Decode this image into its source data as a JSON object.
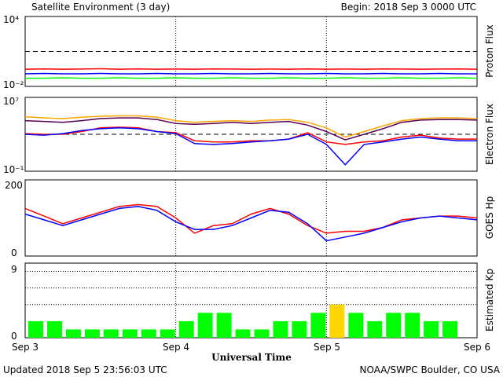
{
  "header": {
    "title": "Satellite Environment (3 day)",
    "begin": "Begin:  2018 Sep 3 0000 UTC"
  },
  "footer": {
    "updated": "Updated 2018 Sep  5 23:56:03 UTC",
    "credit": "NOAA/SWPC Boulder, CO USA"
  },
  "colors": {
    "red": "#ff0000",
    "blue": "#0000ff",
    "green": "#00ff00",
    "orange": "#ffa500",
    "purple": "#550055",
    "kp_green": "#00ff00",
    "kp_yellow": "#ffd700"
  },
  "chart_data": [
    {
      "type": "line",
      "ylabel": "Proton Flux",
      "yscale": "log",
      "ylim": [
        0.01,
        10000
      ],
      "ytick_labels": [
        "10⁴",
        "10⁻²"
      ],
      "threshold": 10,
      "x": [
        0,
        3,
        6,
        9,
        12,
        15,
        18,
        21,
        24,
        27,
        30,
        33,
        36,
        39,
        42,
        45,
        48,
        51,
        54,
        57,
        60,
        63,
        66,
        69,
        72
      ],
      "series": [
        {
          "color": "#ff0000",
          "values": [
            0.3,
            0.32,
            0.3,
            0.31,
            0.33,
            0.3,
            0.32,
            0.3,
            0.31,
            0.3,
            0.32,
            0.31,
            0.3,
            0.31,
            0.3,
            0.32,
            0.3,
            0.31,
            0.3,
            0.32,
            0.31,
            0.3,
            0.31,
            0.32,
            0.3
          ]
        },
        {
          "color": "#0000ff",
          "values": [
            0.12,
            0.13,
            0.12,
            0.12,
            0.13,
            0.12,
            0.12,
            0.13,
            0.12,
            0.12,
            0.13,
            0.12,
            0.12,
            0.13,
            0.12,
            0.12,
            0.13,
            0.12,
            0.12,
            0.13,
            0.12,
            0.12,
            0.13,
            0.12,
            0.12
          ]
        },
        {
          "color": "#00ff00",
          "values": [
            0.05,
            0.05,
            0.055,
            0.05,
            0.05,
            0.055,
            0.05,
            0.05,
            0.055,
            0.05,
            0.05,
            0.055,
            0.05,
            0.05,
            0.055,
            0.05,
            0.05,
            0.055,
            0.05,
            0.05,
            0.055,
            0.05,
            0.05,
            0.055,
            0.05
          ]
        }
      ]
    },
    {
      "type": "line",
      "ylabel": "Electron Flux",
      "yscale": "log",
      "ylim": [
        0.1,
        10000000
      ],
      "ytick_labels": [
        "10⁷",
        "10⁻¹"
      ],
      "threshold": 1000,
      "x": [
        0,
        3,
        6,
        9,
        12,
        15,
        18,
        21,
        24,
        27,
        30,
        33,
        36,
        39,
        42,
        45,
        48,
        51,
        54,
        57,
        60,
        63,
        66,
        69,
        72
      ],
      "series": [
        {
          "color": "#ffa500",
          "values": [
            80000,
            60000,
            50000,
            70000,
            90000,
            100000,
            100000,
            70000,
            30000,
            20000,
            25000,
            30000,
            25000,
            35000,
            40000,
            20000,
            5000,
            500,
            2000,
            8000,
            30000,
            50000,
            60000,
            60000,
            50000
          ]
        },
        {
          "color": "#550055",
          "values": [
            30000,
            25000,
            20000,
            30000,
            50000,
            60000,
            60000,
            40000,
            15000,
            12000,
            15000,
            20000,
            15000,
            20000,
            25000,
            10000,
            2000,
            250,
            1000,
            4000,
            20000,
            35000,
            40000,
            40000,
            35000
          ]
        },
        {
          "color": "#ff0000",
          "values": [
            1200,
            1000,
            1000,
            2000,
            5000,
            6000,
            5000,
            2000,
            1500,
            200,
            150,
            150,
            200,
            200,
            300,
            1500,
            150,
            80,
            150,
            200,
            500,
            800,
            400,
            300,
            300
          ]
        },
        {
          "color": "#0000ff",
          "values": [
            1000,
            800,
            1200,
            2500,
            4000,
            5000,
            4000,
            2000,
            1200,
            100,
            80,
            100,
            150,
            200,
            300,
            1000,
            80,
            0.5,
            80,
            150,
            300,
            500,
            300,
            200,
            200
          ]
        }
      ]
    },
    {
      "type": "line",
      "ylabel": "GOES Hp",
      "ylim": [
        0,
        200
      ],
      "yticks": [
        0,
        200
      ],
      "x": [
        0,
        3,
        6,
        9,
        12,
        15,
        18,
        21,
        24,
        27,
        30,
        33,
        36,
        39,
        42,
        45,
        48,
        51,
        54,
        57,
        60,
        63,
        66,
        69,
        72
      ],
      "series": [
        {
          "color": "#ff0000",
          "values": [
            125,
            105,
            85,
            100,
            115,
            130,
            135,
            130,
            100,
            60,
            80,
            85,
            110,
            125,
            110,
            80,
            60,
            65,
            65,
            75,
            95,
            100,
            105,
            105,
            100
          ]
        },
        {
          "color": "#0000ff",
          "values": [
            110,
            95,
            80,
            95,
            110,
            125,
            130,
            120,
            90,
            70,
            70,
            80,
            100,
            120,
            115,
            85,
            40,
            50,
            60,
            75,
            90,
            100,
            105,
            100,
            95
          ]
        }
      ]
    },
    {
      "type": "bar",
      "ylabel": "Estimated Kp",
      "ylim": [
        0,
        9
      ],
      "yticks": [
        0,
        9
      ],
      "values": [
        2,
        2,
        1,
        1,
        1,
        1,
        1,
        1,
        2,
        3,
        3,
        1,
        1,
        2,
        2,
        3,
        4,
        3,
        2,
        3,
        3,
        2,
        2
      ],
      "bar_colors": [
        "#00ff00",
        "#00ff00",
        "#00ff00",
        "#00ff00",
        "#00ff00",
        "#00ff00",
        "#00ff00",
        "#00ff00",
        "#00ff00",
        "#00ff00",
        "#00ff00",
        "#00ff00",
        "#00ff00",
        "#00ff00",
        "#00ff00",
        "#00ff00",
        "#ffd700",
        "#00ff00",
        "#00ff00",
        "#00ff00",
        "#00ff00",
        "#00ff00",
        "#00ff00"
      ],
      "xlabel": "Universal Time",
      "xtick_labels": [
        "Sep 3",
        "Sep 4",
        "Sep 5",
        "Sep 6"
      ]
    }
  ]
}
